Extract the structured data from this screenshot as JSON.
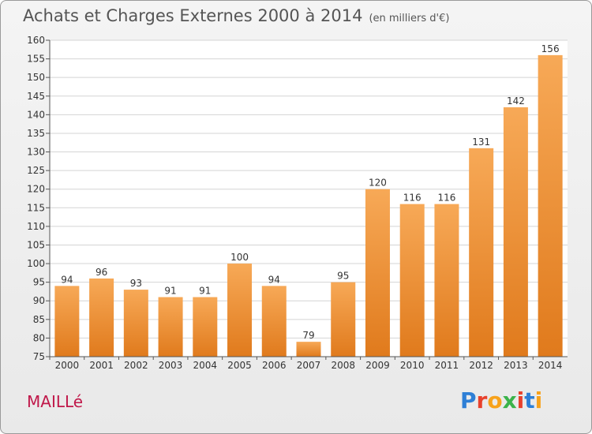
{
  "header": {
    "title": "Achats et Charges Externes 2000 à 2014",
    "unit": "(en milliers d'€)"
  },
  "footer": {
    "place": "MAILLé",
    "logo_letters": [
      "P",
      "r",
      "o",
      "x",
      "i",
      "t",
      "i"
    ],
    "logo_colors": [
      "#2e7fd6",
      "#e8412c",
      "#f7a21b",
      "#3bb34a",
      "#e8412c",
      "#2e7fd6",
      "#f7a21b"
    ]
  },
  "colors": {
    "bar_top": "#f7a957",
    "bar_bottom": "#e07a1c",
    "grid": "#d4d4d4",
    "place": "#c0184a"
  },
  "chart_data": {
    "type": "bar",
    "title": "Achats et Charges Externes 2000 à 2014",
    "subtitle": "(en milliers d'€)",
    "xlabel": "",
    "ylabel": "",
    "categories": [
      "2000",
      "2001",
      "2002",
      "2003",
      "2004",
      "2005",
      "2006",
      "2007",
      "2008",
      "2009",
      "2010",
      "2011",
      "2012",
      "2013",
      "2014"
    ],
    "values": [
      94,
      96,
      93,
      91,
      91,
      100,
      94,
      79,
      95,
      120,
      116,
      116,
      131,
      142,
      156
    ],
    "ylim": [
      75,
      160
    ],
    "yticks": [
      75,
      80,
      85,
      90,
      95,
      100,
      105,
      110,
      115,
      120,
      125,
      130,
      135,
      140,
      145,
      150,
      155,
      160
    ],
    "grid": true,
    "legend": "none"
  }
}
